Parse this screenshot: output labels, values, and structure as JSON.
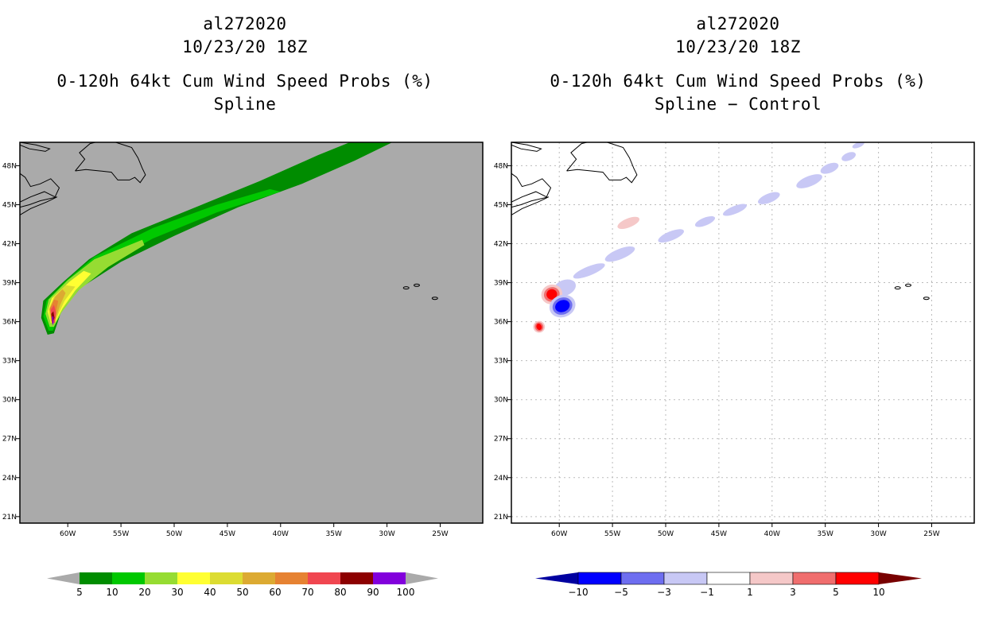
{
  "left_panel": {
    "storm_id": "al272020",
    "datetime": "10/23/20 18Z",
    "product": "0-120h 64kt Cum Wind Speed Probs (%)",
    "subtitle": "Spline"
  },
  "right_panel": {
    "storm_id": "al272020",
    "datetime": "10/23/20 18Z",
    "product": "0-120h 64kt Cum Wind Speed Probs (%)",
    "subtitle": "Spline − Control"
  },
  "colors": {
    "ocean": "#aaaaaa",
    "land_outline": "#000000"
  },
  "chart_data": [
    {
      "type": "heatmap",
      "title": "0-120h 64kt Cum Wind Speed Probs (%) Spline",
      "x_axis": {
        "range": [
          -64.5,
          -21
        ],
        "ticks": [
          -60,
          -55,
          -50,
          -45,
          -40,
          -35,
          -30,
          -25
        ],
        "tick_labels": [
          "60W",
          "55W",
          "50W",
          "45W",
          "40W",
          "35W",
          "30W",
          "25W"
        ]
      },
      "y_axis": {
        "range": [
          20.5,
          49.8
        ],
        "ticks": [
          21,
          24,
          27,
          30,
          33,
          36,
          39,
          42,
          45,
          48
        ],
        "tick_labels": [
          "21N",
          "24N",
          "27N",
          "30N",
          "33N",
          "36N",
          "39N",
          "42N",
          "45N",
          "48N"
        ]
      },
      "grid": false,
      "colorbar": {
        "levels": [
          "5",
          "10",
          "20",
          "30",
          "40",
          "50",
          "60",
          "70",
          "80",
          "90",
          "100"
        ],
        "colors": [
          "#008c00",
          "#00c800",
          "#96dc32",
          "#ffff32",
          "#dcdc32",
          "#dcaa32",
          "#e68232",
          "#f04650",
          "#8c0000",
          "#8200dc"
        ],
        "under_color": "#aaaaaa",
        "over_color": "#aaaaaa"
      },
      "contours": [
        {
          "level": 5,
          "points": [
            [
              -61.9,
              35.0
            ],
            [
              -62.5,
              36.3
            ],
            [
              -62.3,
              37.6
            ],
            [
              -60.5,
              39.0
            ],
            [
              -58,
              40.8
            ],
            [
              -54,
              42.8
            ],
            [
              -48,
              44.8
            ],
            [
              -42,
              46.8
            ],
            [
              -36.5,
              48.8
            ],
            [
              -33.5,
              49.8
            ],
            [
              -29.5,
              49.8
            ],
            [
              -33,
              48.4
            ],
            [
              -38,
              46.6
            ],
            [
              -44,
              44.8
            ],
            [
              -50,
              42.6
            ],
            [
              -55,
              40.6
            ],
            [
              -58.8,
              38.6
            ],
            [
              -60.6,
              36.8
            ],
            [
              -61.3,
              35.1
            ]
          ]
        },
        {
          "level": 10,
          "points": [
            [
              -61.8,
              35.3
            ],
            [
              -62.3,
              36.4
            ],
            [
              -62.0,
              37.6
            ],
            [
              -60.2,
              39.1
            ],
            [
              -57.5,
              41.0
            ],
            [
              -52,
              43.2
            ],
            [
              -46,
              45.0
            ],
            [
              -41,
              46.2
            ],
            [
              -40,
              46.0
            ],
            [
              -46,
              44.4
            ],
            [
              -52,
              42.4
            ],
            [
              -56.5,
              40.4
            ],
            [
              -59.3,
              38.4
            ],
            [
              -60.8,
              36.6
            ],
            [
              -61.4,
              35.3
            ]
          ]
        },
        {
          "level": 20,
          "points": [
            [
              -61.7,
              35.6
            ],
            [
              -62.1,
              36.6
            ],
            [
              -61.8,
              37.7
            ],
            [
              -60.0,
              39.2
            ],
            [
              -57.5,
              40.8
            ],
            [
              -53,
              42.3
            ],
            [
              -52.8,
              41.9
            ],
            [
              -56.2,
              40.2
            ],
            [
              -59.0,
              38.4
            ],
            [
              -60.6,
              36.7
            ],
            [
              -61.3,
              35.6
            ]
          ]
        },
        {
          "level": 30,
          "points": [
            [
              -61.6,
              35.9
            ],
            [
              -61.9,
              36.8
            ],
            [
              -61.5,
              37.8
            ],
            [
              -59.8,
              39.1
            ],
            [
              -58.5,
              39.9
            ],
            [
              -57.8,
              39.7
            ],
            [
              -59.3,
              38.4
            ],
            [
              -60.5,
              37.0
            ],
            [
              -61.2,
              35.9
            ]
          ]
        },
        {
          "level": 40,
          "points": [
            [
              -61.6,
              36.0
            ],
            [
              -61.8,
              36.9
            ],
            [
              -61.3,
              37.9
            ],
            [
              -60.2,
              38.8
            ],
            [
              -59.3,
              38.7
            ],
            [
              -60.3,
              37.6
            ],
            [
              -61.1,
              36.2
            ]
          ]
        },
        {
          "level": 50,
          "points": [
            [
              -61.5,
              36.0
            ],
            [
              -61.7,
              37.0
            ],
            [
              -61.2,
              37.9
            ],
            [
              -60.5,
              38.5
            ],
            [
              -60.2,
              38.2
            ],
            [
              -60.7,
              37.3
            ],
            [
              -61.2,
              36.1
            ]
          ]
        },
        {
          "level": 60,
          "points": [
            [
              -61.5,
              36.0
            ],
            [
              -61.7,
              37.0
            ],
            [
              -61.3,
              37.7
            ],
            [
              -60.9,
              37.6
            ],
            [
              -61.1,
              36.8
            ],
            [
              -61.2,
              36.1
            ]
          ]
        },
        {
          "level": 70,
          "points": [
            [
              -61.5,
              35.9
            ],
            [
              -61.6,
              36.9
            ],
            [
              -61.3,
              37.3
            ],
            [
              -61.1,
              36.7
            ],
            [
              -61.2,
              35.9
            ]
          ]
        },
        {
          "level": 80,
          "points": [
            [
              -61.45,
              35.8
            ],
            [
              -61.55,
              36.6
            ],
            [
              -61.35,
              36.8
            ],
            [
              -61.25,
              36.3
            ]
          ]
        },
        {
          "level": 90,
          "points": [
            [
              -61.42,
              35.7
            ],
            [
              -61.48,
              36.4
            ],
            [
              -61.35,
              36.4
            ],
            [
              -61.33,
              35.9
            ]
          ]
        }
      ]
    },
    {
      "type": "heatmap",
      "title": "0-120h 64kt Cum Wind Speed Probs (%) Spline − Control",
      "x_axis": {
        "range": [
          -64.5,
          -21
        ],
        "ticks": [
          -60,
          -55,
          -50,
          -45,
          -40,
          -35,
          -30,
          -25
        ],
        "tick_labels": [
          "60W",
          "55W",
          "50W",
          "45W",
          "40W",
          "35W",
          "30W",
          "25W"
        ]
      },
      "y_axis": {
        "range": [
          20.5,
          49.8
        ],
        "ticks": [
          21,
          24,
          27,
          30,
          33,
          36,
          39,
          42,
          45,
          48
        ],
        "tick_labels": [
          "21N",
          "24N",
          "27N",
          "30N",
          "33N",
          "36N",
          "39N",
          "42N",
          "45N",
          "48N"
        ]
      },
      "grid": true,
      "colorbar": {
        "levels": [
          "−10",
          "−5",
          "−3",
          "−1",
          "1",
          "3",
          "5",
          "10"
        ],
        "colors": [
          "#0000a0",
          "#0000ff",
          "#6e6ef0",
          "#c8c8f5",
          "#ffffff",
          "#f5c8c8",
          "#f06e6e",
          "#ff0000",
          "#780000"
        ]
      },
      "features": [
        {
          "value": -2,
          "center": [
            -59.5,
            38.6
          ],
          "radius": [
            1.1,
            0.6
          ]
        },
        {
          "value": -2,
          "center": [
            -57.2,
            39.9
          ],
          "radius": [
            1.6,
            0.35
          ]
        },
        {
          "value": -2,
          "center": [
            -54.3,
            41.2
          ],
          "radius": [
            1.5,
            0.4
          ]
        },
        {
          "value": -2,
          "center": [
            -49.5,
            42.6
          ],
          "radius": [
            1.3,
            0.35
          ]
        },
        {
          "value": -2,
          "center": [
            -46.3,
            43.7
          ],
          "radius": [
            1.0,
            0.3
          ]
        },
        {
          "value": -2,
          "center": [
            -43.5,
            44.6
          ],
          "radius": [
            1.2,
            0.3
          ]
        },
        {
          "value": -2,
          "center": [
            -40.3,
            45.5
          ],
          "radius": [
            1.1,
            0.35
          ]
        },
        {
          "value": -2,
          "center": [
            -36.5,
            46.8
          ],
          "radius": [
            1.3,
            0.4
          ]
        },
        {
          "value": -2,
          "center": [
            -34.6,
            47.8
          ],
          "radius": [
            0.9,
            0.35
          ]
        },
        {
          "value": -2,
          "center": [
            -32.8,
            48.7
          ],
          "radius": [
            0.7,
            0.3
          ]
        },
        {
          "value": -2,
          "center": [
            -31.9,
            49.6
          ],
          "radius": [
            0.6,
            0.2
          ]
        },
        {
          "value": 2,
          "center": [
            -53.5,
            43.6
          ],
          "radius": [
            1.1,
            0.35
          ]
        },
        {
          "value": 2,
          "center": [
            -60.7,
            38.1
          ],
          "radius": [
            1.0,
            0.75
          ]
        },
        {
          "value": 4,
          "center": [
            -60.7,
            38.1
          ],
          "radius": [
            0.75,
            0.55
          ]
        },
        {
          "value": 7,
          "center": [
            -60.7,
            38.1
          ],
          "radius": [
            0.5,
            0.4
          ]
        },
        {
          "value": 2,
          "center": [
            -61.9,
            35.6
          ],
          "radius": [
            0.55,
            0.45
          ]
        },
        {
          "value": 4,
          "center": [
            -61.9,
            35.6
          ],
          "radius": [
            0.4,
            0.35
          ]
        },
        {
          "value": 7,
          "center": [
            -61.9,
            35.6
          ],
          "radius": [
            0.25,
            0.25
          ]
        },
        {
          "value": -2,
          "center": [
            -59.7,
            37.2
          ],
          "radius": [
            1.25,
            0.85
          ]
        },
        {
          "value": -4,
          "center": [
            -59.7,
            37.2
          ],
          "radius": [
            0.95,
            0.65
          ]
        },
        {
          "value": -7,
          "center": [
            -59.7,
            37.2
          ],
          "radius": [
            0.7,
            0.45
          ]
        }
      ]
    }
  ]
}
